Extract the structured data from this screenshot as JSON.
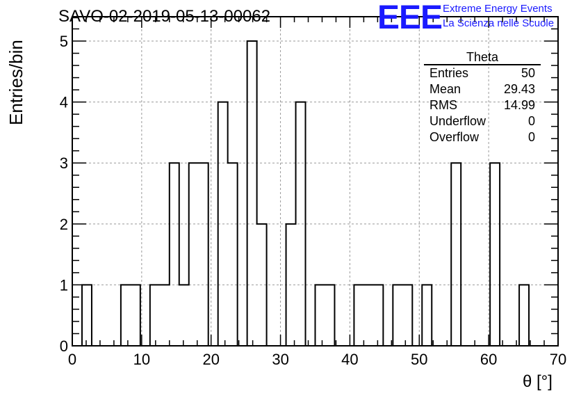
{
  "title": "SAVO-02-2019-05-13-00062",
  "logo": {
    "mark": "EEE",
    "line1": "Extreme Energy Events",
    "line2": "La Scienza nelle Scuole"
  },
  "stats": {
    "title": "Theta",
    "rows": [
      {
        "label": "Entries",
        "value": "50"
      },
      {
        "label": "Mean",
        "value": "29.43"
      },
      {
        "label": "RMS",
        "value": "14.99"
      },
      {
        "label": "Underflow",
        "value": "0"
      },
      {
        "label": "Overflow",
        "value": "0"
      }
    ]
  },
  "chart_data": {
    "type": "bar",
    "histogram": true,
    "xlabel": "θ [°]",
    "ylabel": "Entries/bin",
    "xlim": [
      0,
      70
    ],
    "ylim": [
      0,
      5.4
    ],
    "grid": true,
    "bin_width": 1.4,
    "x_ticks": [
      "0",
      "10",
      "20",
      "30",
      "40",
      "50",
      "60",
      "70"
    ],
    "y_ticks": [
      "0",
      "1",
      "2",
      "3",
      "4",
      "5"
    ],
    "values": [
      0,
      1,
      0,
      0,
      0,
      1,
      1,
      0,
      1,
      1,
      3,
      1,
      3,
      3,
      0,
      4,
      3,
      0,
      5,
      2,
      0,
      0,
      2,
      4,
      0,
      1,
      1,
      0,
      0,
      1,
      1,
      1,
      0,
      1,
      1,
      0,
      1,
      0,
      0,
      3,
      0,
      0,
      0,
      3,
      0,
      0,
      1,
      0,
      0,
      0
    ]
  }
}
